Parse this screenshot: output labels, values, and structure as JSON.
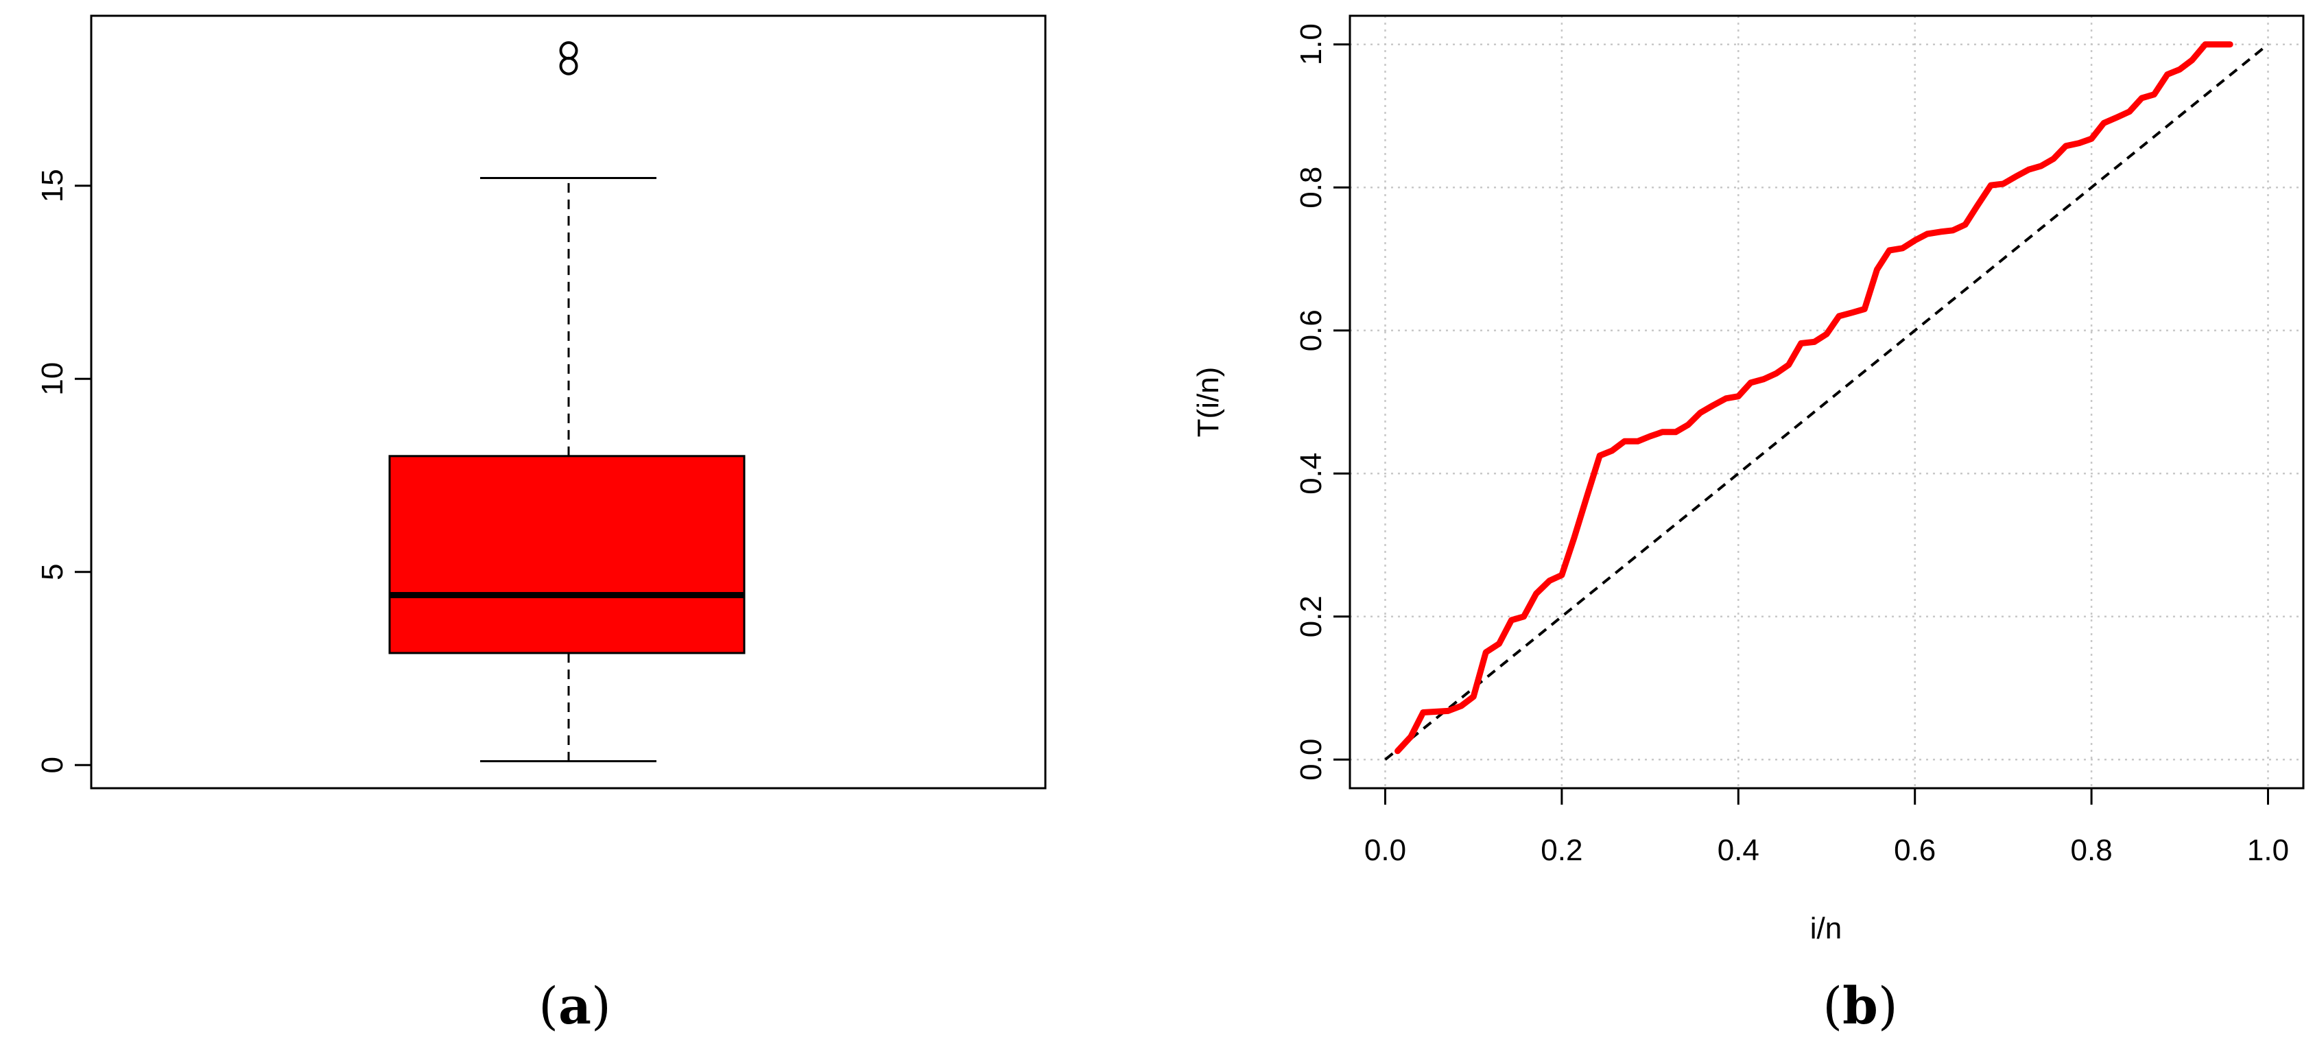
{
  "chart_data": [
    {
      "type": "box",
      "caption": "(a)",
      "caption_letter": "a",
      "ylim": [
        -0.6,
        19.4
      ],
      "y_ticks": [
        0,
        5,
        10,
        15
      ],
      "stats": {
        "whisker_low": 0.1,
        "q1": 2.9,
        "median": 4.4,
        "q3": 8.0,
        "whisker_high": 15.2
      },
      "outliers": [
        18.1,
        18.5
      ],
      "fill_color": "#ff0000",
      "grid": false
    },
    {
      "type": "line",
      "caption": "(b)",
      "caption_letter": "b",
      "xlabel": "i/n",
      "ylabel": "T(i/n)",
      "xlim": [
        -0.04,
        1.04
      ],
      "ylim": [
        -0.04,
        1.04
      ],
      "x_ticks": [
        0.0,
        0.2,
        0.4,
        0.6,
        0.8,
        1.0
      ],
      "y_ticks": [
        0.0,
        0.2,
        0.4,
        0.6,
        0.8,
        1.0
      ],
      "grid": true,
      "reference_line": {
        "style": "dashed",
        "color": "#000000",
        "from": [
          0,
          0
        ],
        "to": [
          1,
          1
        ]
      },
      "series": [
        {
          "color": "#ff0000",
          "points": [
            [
              0.014,
              0.012
            ],
            [
              0.029,
              0.032
            ],
            [
              0.043,
              0.066
            ],
            [
              0.071,
              0.068
            ],
            [
              0.086,
              0.075
            ],
            [
              0.1,
              0.088
            ],
            [
              0.114,
              0.15
            ],
            [
              0.129,
              0.162
            ],
            [
              0.143,
              0.195
            ],
            [
              0.157,
              0.2
            ],
            [
              0.171,
              0.232
            ],
            [
              0.186,
              0.25
            ],
            [
              0.2,
              0.258
            ],
            [
              0.214,
              0.31
            ],
            [
              0.229,
              0.37
            ],
            [
              0.243,
              0.425
            ],
            [
              0.257,
              0.432
            ],
            [
              0.271,
              0.445
            ],
            [
              0.286,
              0.445
            ],
            [
              0.3,
              0.452
            ],
            [
              0.314,
              0.458
            ],
            [
              0.329,
              0.458
            ],
            [
              0.343,
              0.468
            ],
            [
              0.357,
              0.485
            ],
            [
              0.371,
              0.495
            ],
            [
              0.386,
              0.505
            ],
            [
              0.4,
              0.508
            ],
            [
              0.414,
              0.527
            ],
            [
              0.429,
              0.532
            ],
            [
              0.443,
              0.54
            ],
            [
              0.457,
              0.552
            ],
            [
              0.471,
              0.582
            ],
            [
              0.486,
              0.584
            ],
            [
              0.5,
              0.595
            ],
            [
              0.514,
              0.62
            ],
            [
              0.529,
              0.625
            ],
            [
              0.543,
              0.63
            ],
            [
              0.557,
              0.685
            ],
            [
              0.571,
              0.712
            ],
            [
              0.586,
              0.715
            ],
            [
              0.6,
              0.726
            ],
            [
              0.614,
              0.735
            ],
            [
              0.629,
              0.738
            ],
            [
              0.643,
              0.74
            ],
            [
              0.657,
              0.748
            ],
            [
              0.671,
              0.775
            ],
            [
              0.686,
              0.803
            ],
            [
              0.7,
              0.805
            ],
            [
              0.714,
              0.815
            ],
            [
              0.729,
              0.825
            ],
            [
              0.743,
              0.83
            ],
            [
              0.757,
              0.84
            ],
            [
              0.771,
              0.858
            ],
            [
              0.786,
              0.862
            ],
            [
              0.8,
              0.868
            ],
            [
              0.814,
              0.89
            ],
            [
              0.829,
              0.898
            ],
            [
              0.843,
              0.906
            ],
            [
              0.857,
              0.925
            ],
            [
              0.871,
              0.93
            ],
            [
              0.886,
              0.958
            ],
            [
              0.9,
              0.965
            ],
            [
              0.914,
              0.978
            ],
            [
              0.929,
              1.0
            ],
            [
              0.957,
              1.0
            ]
          ]
        }
      ]
    }
  ]
}
